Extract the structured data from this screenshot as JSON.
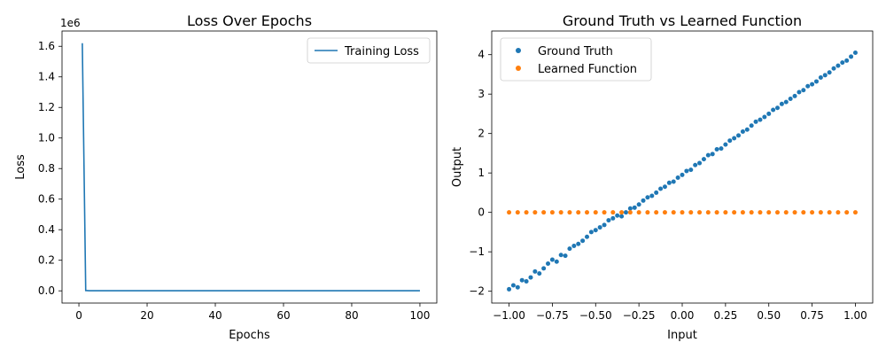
{
  "chart_data": [
    {
      "type": "line",
      "title": "Loss Over Epochs",
      "xlabel": "Epochs",
      "ylabel": "Loss",
      "y_offset_label": "1e6",
      "xlim": [
        -4.95,
        104.95
      ],
      "ylim": [
        -0.08,
        1.7
      ],
      "xticks": [
        0,
        20,
        40,
        60,
        80,
        100
      ],
      "xtick_labels": [
        "0",
        "20",
        "40",
        "60",
        "80",
        "100"
      ],
      "yticks": [
        0.0,
        0.2,
        0.4,
        0.6,
        0.8,
        1.0,
        1.2,
        1.4,
        1.6
      ],
      "ytick_labels": [
        "0.0",
        "0.2",
        "0.4",
        "0.6",
        "0.8",
        "1.0",
        "1.2",
        "1.4",
        "1.6"
      ],
      "grid": false,
      "legend_position": "upper right",
      "series": [
        {
          "name": "Training Loss",
          "color": "#1f77b4",
          "x": [
            1,
            2,
            3,
            5,
            10,
            20,
            30,
            40,
            50,
            60,
            70,
            80,
            90,
            100
          ],
          "y": [
            1.62,
            0.002,
            0.001,
            0.001,
            0.001,
            0.001,
            0.001,
            0.001,
            0.001,
            0.001,
            0.001,
            0.001,
            0.001,
            0.001
          ]
        }
      ]
    },
    {
      "type": "scatter",
      "title": "Ground Truth vs Learned Function",
      "xlabel": "Input",
      "ylabel": "Output",
      "xlim": [
        -1.1,
        1.1
      ],
      "ylim": [
        -2.3,
        4.6
      ],
      "xticks": [
        -1.0,
        -0.75,
        -0.5,
        -0.25,
        0.0,
        0.25,
        0.5,
        0.75,
        1.0
      ],
      "xtick_labels": [
        "−1.00",
        "−0.75",
        "−0.50",
        "−0.25",
        "0.00",
        "0.25",
        "0.50",
        "0.75",
        "1.00"
      ],
      "yticks": [
        -2,
        -1,
        0,
        1,
        2,
        3,
        4
      ],
      "ytick_labels": [
        "−2",
        "−1",
        "0",
        "1",
        "2",
        "3",
        "4"
      ],
      "grid": false,
      "legend_position": "upper left",
      "series": [
        {
          "name": "Ground Truth",
          "color": "#1f77b4",
          "x": [
            -1.0,
            -0.975,
            -0.95,
            -0.925,
            -0.9,
            -0.875,
            -0.85,
            -0.825,
            -0.8,
            -0.775,
            -0.75,
            -0.725,
            -0.7,
            -0.675,
            -0.65,
            -0.625,
            -0.6,
            -0.575,
            -0.55,
            -0.525,
            -0.5,
            -0.475,
            -0.45,
            -0.425,
            -0.4,
            -0.375,
            -0.35,
            -0.325,
            -0.3,
            -0.275,
            -0.25,
            -0.225,
            -0.2,
            -0.175,
            -0.15,
            -0.125,
            -0.1,
            -0.075,
            -0.05,
            -0.025,
            0.0,
            0.025,
            0.05,
            0.075,
            0.1,
            0.125,
            0.15,
            0.175,
            0.2,
            0.225,
            0.25,
            0.275,
            0.3,
            0.325,
            0.35,
            0.375,
            0.4,
            0.425,
            0.45,
            0.475,
            0.5,
            0.525,
            0.55,
            0.575,
            0.6,
            0.625,
            0.65,
            0.675,
            0.7,
            0.725,
            0.75,
            0.775,
            0.8,
            0.825,
            0.85,
            0.875,
            0.9,
            0.925,
            0.95,
            0.975,
            1.0
          ],
          "y": [
            -1.95,
            -1.85,
            -1.9,
            -1.72,
            -1.75,
            -1.65,
            -1.5,
            -1.55,
            -1.42,
            -1.3,
            -1.2,
            -1.25,
            -1.08,
            -1.1,
            -0.92,
            -0.85,
            -0.8,
            -0.72,
            -0.62,
            -0.5,
            -0.45,
            -0.38,
            -0.32,
            -0.2,
            -0.15,
            -0.08,
            -0.1,
            0.0,
            0.1,
            0.12,
            0.2,
            0.3,
            0.38,
            0.42,
            0.5,
            0.6,
            0.65,
            0.75,
            0.78,
            0.88,
            0.95,
            1.05,
            1.08,
            1.2,
            1.25,
            1.35,
            1.45,
            1.48,
            1.6,
            1.62,
            1.72,
            1.82,
            1.88,
            1.95,
            2.05,
            2.1,
            2.2,
            2.3,
            2.35,
            2.42,
            2.5,
            2.6,
            2.65,
            2.75,
            2.8,
            2.88,
            2.95,
            3.05,
            3.1,
            3.2,
            3.25,
            3.32,
            3.42,
            3.48,
            3.55,
            3.65,
            3.72,
            3.8,
            3.85,
            3.95,
            4.05
          ]
        },
        {
          "name": "Learned Function",
          "color": "#ff7f0e",
          "x": [
            -1.0,
            -0.95,
            -0.9,
            -0.85,
            -0.8,
            -0.75,
            -0.7,
            -0.65,
            -0.6,
            -0.55,
            -0.5,
            -0.45,
            -0.4,
            -0.35,
            -0.3,
            -0.25,
            -0.2,
            -0.15,
            -0.1,
            -0.05,
            0.0,
            0.05,
            0.1,
            0.15,
            0.2,
            0.25,
            0.3,
            0.35,
            0.4,
            0.45,
            0.5,
            0.55,
            0.6,
            0.65,
            0.7,
            0.75,
            0.8,
            0.85,
            0.9,
            0.95,
            1.0
          ],
          "y": [
            0,
            0,
            0,
            0,
            0,
            0,
            0,
            0,
            0,
            0,
            0,
            0,
            0,
            0,
            0,
            0,
            0,
            0,
            0,
            0,
            0,
            0,
            0,
            0,
            0,
            0,
            0,
            0,
            0,
            0,
            0,
            0,
            0,
            0,
            0,
            0,
            0,
            0,
            0,
            0,
            0
          ]
        }
      ]
    }
  ]
}
